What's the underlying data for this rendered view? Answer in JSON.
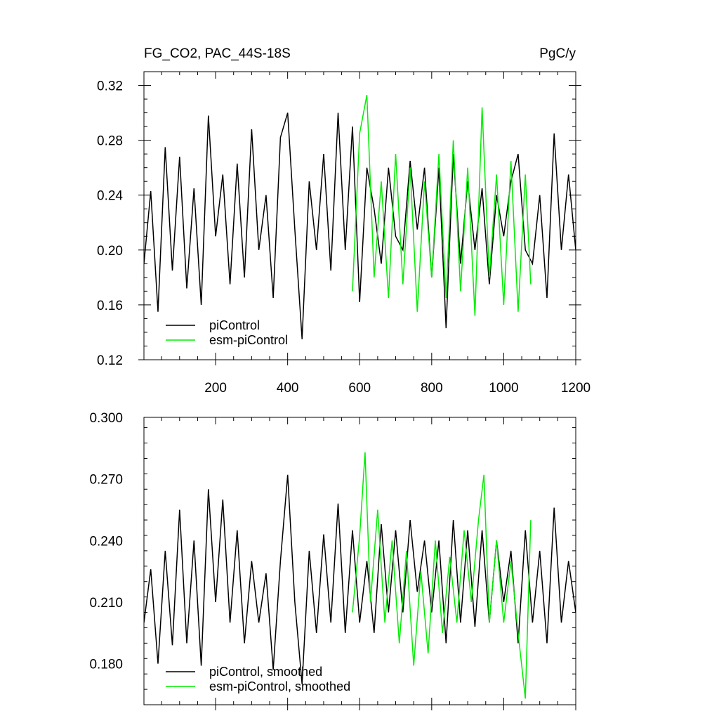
{
  "colors": {
    "piControl": "#000000",
    "esm-piControl": "#00ee00"
  },
  "chart_data": [
    {
      "type": "line",
      "title": "FG_CO2, PAC_44S-18S",
      "units": "PgC/y",
      "xlim": [
        1,
        1200
      ],
      "ylim": [
        0.12,
        0.33
      ],
      "xticks": [
        200,
        400,
        600,
        800,
        1000,
        1200
      ],
      "xtick_labels": [
        "200",
        "400",
        "600",
        "800",
        "1000",
        "1200"
      ],
      "yticks": [
        0.12,
        0.16,
        0.2,
        0.24,
        0.28,
        0.32
      ],
      "ytick_labels": [
        "0.12",
        "0.16",
        "0.20",
        "0.24",
        "0.28",
        "0.32"
      ],
      "legend_position": "bottom-left",
      "series": [
        {
          "name": "piControl",
          "x": [
            1,
            20,
            40,
            60,
            80,
            100,
            120,
            140,
            160,
            180,
            200,
            220,
            240,
            260,
            280,
            300,
            320,
            340,
            360,
            380,
            400,
            420,
            440,
            460,
            480,
            500,
            520,
            540,
            560,
            580,
            600,
            620,
            640,
            660,
            680,
            700,
            720,
            740,
            760,
            780,
            800,
            820,
            840,
            860,
            880,
            900,
            920,
            940,
            960,
            980,
            1000,
            1020,
            1040,
            1060,
            1080,
            1100,
            1120,
            1140,
            1160,
            1180,
            1200
          ],
          "values": [
            0.19,
            0.243,
            0.155,
            0.275,
            0.185,
            0.268,
            0.172,
            0.245,
            0.16,
            0.298,
            0.21,
            0.255,
            0.175,
            0.263,
            0.18,
            0.288,
            0.2,
            0.24,
            0.165,
            0.282,
            0.3,
            0.215,
            0.135,
            0.25,
            0.2,
            0.27,
            0.185,
            0.3,
            0.2,
            0.29,
            0.162,
            0.26,
            0.23,
            0.19,
            0.26,
            0.21,
            0.2,
            0.265,
            0.215,
            0.26,
            0.18,
            0.26,
            0.143,
            0.27,
            0.19,
            0.25,
            0.2,
            0.245,
            0.175,
            0.24,
            0.21,
            0.25,
            0.27,
            0.2,
            0.19,
            0.24,
            0.165,
            0.285,
            0.2,
            0.255,
            0.2
          ]
        },
        {
          "name": "esm-piControl",
          "x": [
            580,
            600,
            620,
            640,
            660,
            680,
            700,
            720,
            740,
            760,
            780,
            800,
            820,
            840,
            860,
            880,
            900,
            920,
            940,
            960,
            980,
            1000,
            1020,
            1040,
            1060,
            1075
          ],
          "values": [
            0.17,
            0.285,
            0.313,
            0.18,
            0.25,
            0.165,
            0.27,
            0.175,
            0.26,
            0.155,
            0.25,
            0.18,
            0.27,
            0.165,
            0.28,
            0.17,
            0.26,
            0.152,
            0.304,
            0.18,
            0.255,
            0.16,
            0.265,
            0.155,
            0.255,
            0.175
          ]
        }
      ]
    },
    {
      "type": "line",
      "xlim": [
        1,
        1200
      ],
      "ylim": [
        0.16,
        0.3
      ],
      "yticks": [
        0.18,
        0.21,
        0.24,
        0.27,
        0.3
      ],
      "ytick_labels": [
        "0.180",
        "0.210",
        "0.240",
        "0.270",
        "0.300"
      ],
      "legend_position": "bottom-left",
      "series": [
        {
          "name": "piControl, smoothed",
          "x": [
            1,
            20,
            40,
            60,
            80,
            100,
            120,
            140,
            160,
            180,
            200,
            220,
            240,
            260,
            280,
            300,
            320,
            340,
            360,
            380,
            400,
            420,
            440,
            460,
            480,
            500,
            520,
            540,
            560,
            580,
            600,
            620,
            640,
            660,
            680,
            700,
            720,
            740,
            760,
            780,
            800,
            820,
            840,
            860,
            880,
            900,
            920,
            940,
            960,
            980,
            1000,
            1020,
            1040,
            1060,
            1080,
            1100,
            1120,
            1140,
            1160,
            1180,
            1200
          ],
          "values": [
            0.2,
            0.226,
            0.18,
            0.235,
            0.189,
            0.255,
            0.19,
            0.24,
            0.179,
            0.265,
            0.21,
            0.26,
            0.2,
            0.245,
            0.19,
            0.23,
            0.2,
            0.224,
            0.177,
            0.23,
            0.272,
            0.21,
            0.17,
            0.235,
            0.195,
            0.243,
            0.2,
            0.258,
            0.195,
            0.245,
            0.2,
            0.23,
            0.195,
            0.248,
            0.205,
            0.245,
            0.205,
            0.25,
            0.215,
            0.24,
            0.205,
            0.24,
            0.19,
            0.25,
            0.2,
            0.245,
            0.198,
            0.245,
            0.2,
            0.24,
            0.21,
            0.235,
            0.19,
            0.245,
            0.2,
            0.235,
            0.19,
            0.256,
            0.2,
            0.23,
            0.205
          ]
        },
        {
          "name": "esm-piControl, smoothed",
          "x": [
            580,
            600,
            615,
            630,
            650,
            670,
            690,
            710,
            730,
            750,
            770,
            790,
            810,
            830,
            850,
            870,
            890,
            910,
            930,
            945,
            960,
            980,
            1000,
            1020,
            1040,
            1060,
            1075
          ],
          "values": [
            0.205,
            0.242,
            0.283,
            0.21,
            0.255,
            0.2,
            0.24,
            0.19,
            0.235,
            0.179,
            0.225,
            0.185,
            0.24,
            0.195,
            0.232,
            0.2,
            0.245,
            0.21,
            0.25,
            0.272,
            0.2,
            0.24,
            0.2,
            0.23,
            0.195,
            0.163,
            0.25
          ]
        }
      ]
    }
  ]
}
